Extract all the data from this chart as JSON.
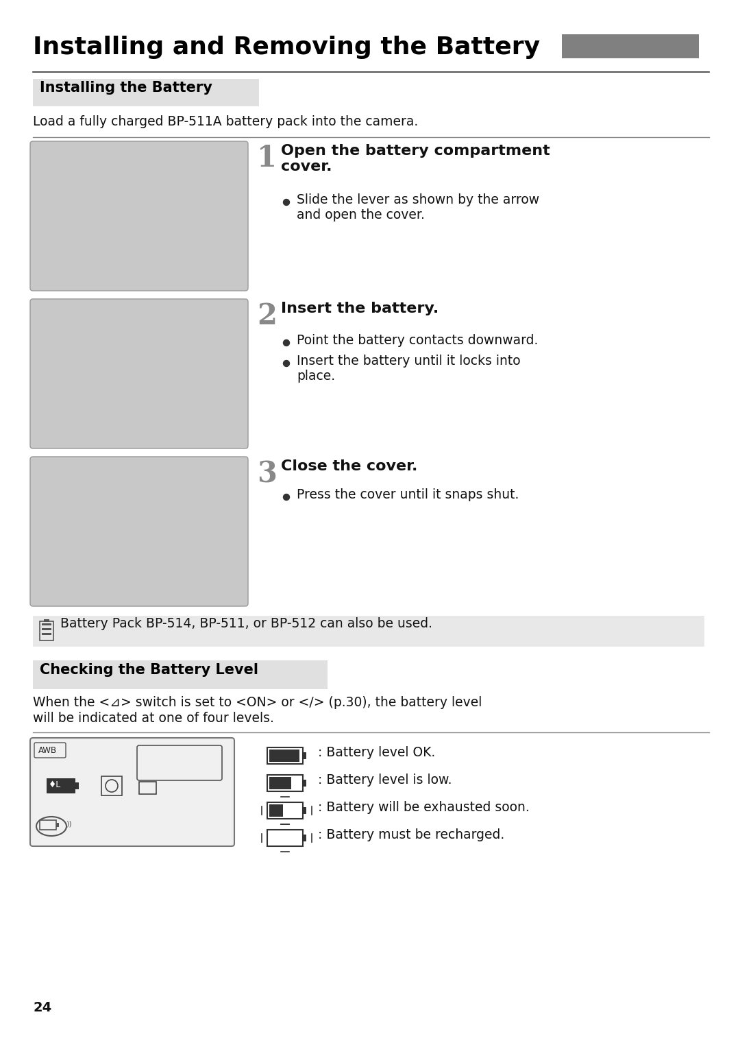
{
  "title": "Installing and Removing the Battery",
  "title_fontsize": 26,
  "title_color": "#000000",
  "title_rect_color": "#808080",
  "bg_color": "#ffffff",
  "page_number": "24",
  "section1_label": "Installing the Battery",
  "section1_bg": "#e0e0e0",
  "section1_text_color": "#000000",
  "intro_text": "Load a fully charged BP-511A battery pack into the camera.",
  "step1_num": "1",
  "step1_title": "Open the battery compartment\ncover.",
  "step1_bullet1": "Slide the lever as shown by the arrow\nand open the cover.",
  "step2_num": "2",
  "step2_title": "Insert the battery.",
  "step2_bullet1": "Point the battery contacts downward.",
  "step2_bullet2": "Insert the battery until it locks into\nplace.",
  "step3_num": "3",
  "step3_title": "Close the cover.",
  "step3_bullet1": "Press the cover until it snaps shut.",
  "note_text": "Battery Pack BP-514, BP-511, or BP-512 can also be used.",
  "note_bg": "#e8e8e8",
  "section2_label": "Checking the Battery Level",
  "section2_bg": "#e0e0e0",
  "section2_text_color": "#000000",
  "check_line1": "When the <⊿> switch is set to <ON> or <∕> (p.30), the battery level",
  "check_line2": "will be indicated at one of four levels.",
  "battery_ok": ": Battery level OK.",
  "battery_low": ": Battery level is low.",
  "battery_soon": ": Battery will be exhausted soon.",
  "battery_recharge": ": Battery must be recharged.",
  "divider_color": "#aaaaaa",
  "bullet_color": "#333333",
  "body_fontsize": 13.5,
  "step_title_fontsize": 16,
  "step_num_fontsize": 30,
  "label_fontsize": 15
}
